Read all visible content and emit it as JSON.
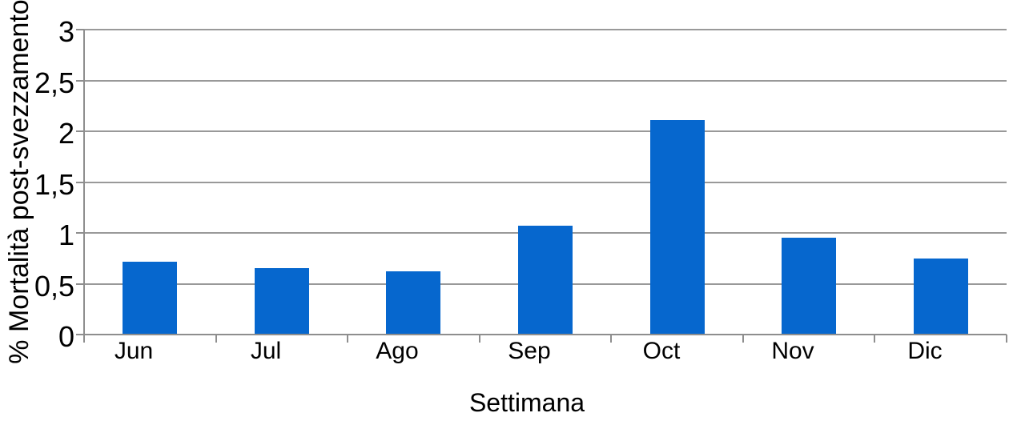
{
  "chart_data": {
    "type": "bar",
    "title": "",
    "xlabel": "Settimana",
    "ylabel": "% Mortalità post-svezzamento",
    "categories": [
      "Jun",
      "Jul",
      "Ago",
      "Sep",
      "Oct",
      "Nov",
      "Dic"
    ],
    "values": [
      0.72,
      0.65,
      0.62,
      1.07,
      2.11,
      0.95,
      0.75
    ],
    "series_name": "% Mortalità post-svezzamento",
    "ylim": [
      0,
      3
    ],
    "ytick_step": 0.5,
    "ytick_labels": [
      "0",
      "0,5",
      "1",
      "1,5",
      "2",
      "2,5",
      "3"
    ],
    "decimal_separator": ",",
    "grid": "horizontal",
    "legend_position": "none",
    "colors": {
      "bar": "#0667ce",
      "gridline": "#999999",
      "axis": "#8e8e8e",
      "text": "#000000",
      "background": "#ffffff"
    }
  }
}
